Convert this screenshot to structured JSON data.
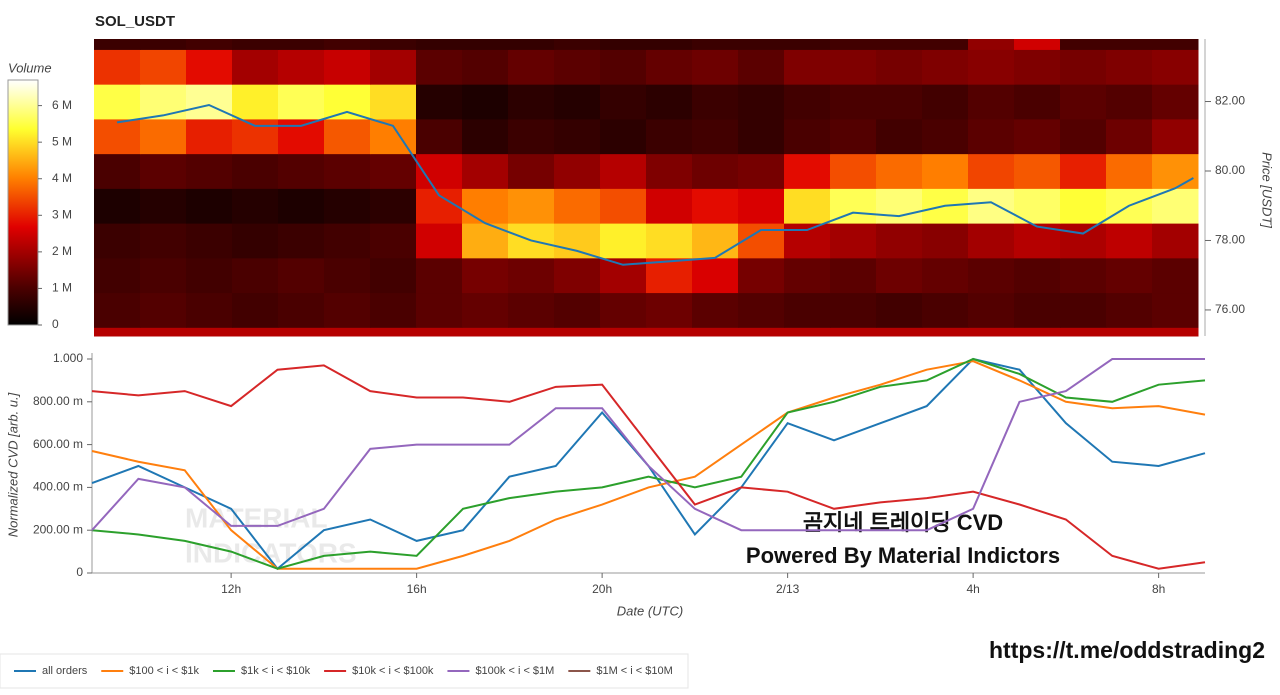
{
  "chart_data": [
    {
      "type": "heatmap",
      "title": "SOL_USDT",
      "xlim": [
        9,
        33
      ],
      "x_edges": [
        9,
        10,
        11,
        12,
        13,
        14,
        15,
        16,
        17,
        18,
        19,
        20,
        21,
        22,
        23,
        24,
        25,
        26,
        27,
        28,
        29,
        30,
        31,
        32,
        33
      ],
      "y_edges": [
        75.25,
        75.5,
        76.5,
        77.5,
        78.5,
        79.5,
        80.5,
        81.5,
        82.5,
        83.5,
        83.8
      ],
      "z": [
        [
          2.2,
          2.2,
          2.2,
          2.2,
          2.2,
          2.2,
          2.2,
          2.2,
          2.2,
          2.2,
          2.2,
          2.2,
          2.2,
          2.2,
          2.2,
          2.2,
          2.2,
          2.2,
          2.2,
          2.2,
          2.2,
          2.2,
          2.2,
          2.2
        ],
        [
          1.0,
          1.1,
          1.0,
          0.9,
          1.0,
          1.1,
          1.0,
          1.2,
          1.3,
          1.2,
          1.1,
          1.3,
          1.4,
          1.2,
          1.1,
          1.0,
          1.0,
          0.9,
          1.0,
          1.1,
          1.0,
          1.0,
          1.1,
          1.2
        ],
        [
          0.9,
          1.0,
          0.9,
          1.0,
          1.1,
          1.0,
          0.9,
          1.2,
          1.5,
          1.4,
          1.6,
          2.0,
          3.0,
          2.6,
          1.5,
          1.3,
          1.2,
          1.4,
          1.3,
          1.2,
          1.1,
          1.2,
          1.3,
          1.2
        ],
        [
          0.8,
          0.9,
          0.8,
          0.7,
          0.8,
          0.9,
          1.0,
          2.5,
          4.5,
          5.0,
          4.8,
          5.2,
          5.0,
          4.6,
          3.5,
          2.2,
          2.0,
          1.8,
          1.7,
          2.0,
          2.2,
          2.1,
          2.3,
          2.0
        ],
        [
          0.4,
          0.5,
          0.4,
          0.5,
          0.4,
          0.5,
          0.6,
          3.0,
          4.0,
          4.2,
          3.8,
          3.5,
          2.5,
          2.8,
          2.6,
          5.0,
          5.6,
          5.8,
          5.5,
          5.9,
          5.7,
          5.4,
          5.6,
          5.8
        ],
        [
          1.0,
          1.2,
          1.1,
          1.0,
          1.1,
          1.2,
          1.3,
          2.5,
          2.0,
          1.5,
          1.8,
          2.2,
          1.6,
          1.4,
          1.5,
          2.8,
          3.5,
          3.8,
          4.0,
          3.4,
          3.6,
          3.0,
          3.8,
          4.2
        ],
        [
          3.5,
          3.8,
          3.0,
          3.2,
          2.8,
          3.6,
          4.0,
          1.0,
          0.6,
          0.8,
          0.7,
          0.6,
          0.8,
          0.9,
          0.7,
          1.0,
          1.1,
          0.9,
          1.0,
          1.2,
          1.3,
          1.1,
          1.4,
          1.8
        ],
        [
          5.5,
          5.8,
          6.0,
          5.2,
          5.6,
          5.4,
          5.0,
          0.5,
          0.4,
          0.6,
          0.5,
          0.7,
          0.6,
          0.8,
          0.7,
          0.9,
          1.0,
          1.0,
          0.9,
          1.1,
          1.0,
          1.2,
          1.1,
          1.3
        ],
        [
          3.2,
          3.4,
          2.8,
          2.0,
          2.2,
          2.4,
          2.0,
          1.2,
          1.1,
          1.3,
          1.2,
          1.1,
          1.3,
          1.4,
          1.2,
          1.6,
          1.6,
          1.5,
          1.6,
          1.7,
          1.6,
          1.5,
          1.6,
          1.7
        ],
        [
          0.8,
          0.8,
          0.9,
          0.8,
          0.8,
          0.9,
          0.8,
          0.7,
          0.7,
          0.7,
          0.8,
          0.7,
          0.7,
          0.8,
          0.8,
          0.8,
          0.9,
          0.9,
          0.9,
          1.8,
          2.5,
          0.9,
          0.9,
          0.9
        ]
      ],
      "colormap": "hot",
      "colorbar_title": "Volume",
      "zlim": [
        0,
        6.7
      ],
      "zticks": [
        0,
        {
          "value": 1,
          "label": "1 M"
        },
        {
          "value": 2,
          "label": "2 M"
        },
        {
          "value": 3,
          "label": "3 M"
        },
        {
          "value": 4,
          "label": "4 M"
        },
        {
          "value": 5,
          "label": "5 M"
        },
        {
          "value": 6,
          "label": "6 M"
        }
      ],
      "line": {
        "color": "#1f77b4",
        "axis": "y2",
        "x": [
          9.5,
          10.5,
          11.5,
          12.5,
          13.5,
          14.5,
          15.5,
          16.5,
          17.5,
          18.5,
          19.5,
          20.5,
          21.5,
          22.5,
          23.5,
          24.5,
          25.5,
          26.5,
          27.5,
          28.5,
          29.5,
          30.5,
          31.5,
          32.5,
          32.9
        ],
        "values": [
          81.4,
          81.6,
          81.9,
          81.3,
          81.3,
          81.7,
          81.3,
          79.3,
          78.5,
          78.0,
          77.7,
          77.3,
          77.4,
          77.5,
          78.3,
          78.3,
          78.8,
          78.7,
          79.0,
          79.1,
          78.4,
          78.2,
          79.0,
          79.5,
          79.8
        ]
      },
      "y2label": "Price [USDT]",
      "y2lim": [
        75.25,
        83.8
      ],
      "y2ticks": [
        {
          "value": 76,
          "label": "76.00"
        },
        {
          "value": 78,
          "label": "78.00"
        },
        {
          "value": 80,
          "label": "80.00"
        },
        {
          "value": 82,
          "label": "82.00"
        }
      ]
    },
    {
      "type": "line",
      "xlabel": "Date (UTC)",
      "ylabel": "Normalized CVD [arb. u.]",
      "xlim": [
        9,
        33
      ],
      "xticks": [
        {
          "value": 12,
          "label": "12h"
        },
        {
          "value": 16,
          "label": "16h"
        },
        {
          "value": 20,
          "label": "20h"
        },
        {
          "value": 24,
          "label": "2/13"
        },
        {
          "value": 28,
          "label": "4h"
        },
        {
          "value": 32,
          "label": "8h"
        }
      ],
      "ylim": [
        0,
        1
      ],
      "yticks": [
        0,
        {
          "value": 0.2,
          "label": "200.00 m"
        },
        {
          "value": 0.4,
          "label": "400.00 m"
        },
        {
          "value": 0.6,
          "label": "600.00 m"
        },
        {
          "value": 0.8,
          "label": "800.00 m"
        },
        {
          "value": 1,
          "label": "1.000"
        }
      ],
      "x": [
        9,
        10,
        11,
        12,
        13,
        14,
        15,
        16,
        17,
        18,
        19,
        20,
        21,
        22,
        23,
        24,
        25,
        26,
        27,
        28,
        29,
        30,
        31,
        32,
        33
      ],
      "series": [
        {
          "name": "all orders",
          "color": "#1f77b4",
          "values": [
            0.42,
            0.5,
            0.4,
            0.3,
            0.02,
            0.2,
            0.25,
            0.15,
            0.2,
            0.45,
            0.5,
            0.75,
            0.5,
            0.18,
            0.4,
            0.7,
            0.62,
            0.7,
            0.78,
            1.0,
            0.95,
            0.7,
            0.52,
            0.5,
            0.56
          ]
        },
        {
          "name": "$100 < i < $1k",
          "color": "#ff7f0e",
          "values": [
            0.57,
            0.52,
            0.48,
            0.2,
            0.02,
            0.02,
            0.02,
            0.02,
            0.08,
            0.15,
            0.25,
            0.32,
            0.4,
            0.45,
            0.6,
            0.75,
            0.82,
            0.88,
            0.95,
            0.99,
            0.9,
            0.8,
            0.77,
            0.78,
            0.74
          ]
        },
        {
          "name": "$1k < i < $10k",
          "color": "#2ca02c",
          "values": [
            0.2,
            0.18,
            0.15,
            0.1,
            0.02,
            0.08,
            0.1,
            0.08,
            0.3,
            0.35,
            0.38,
            0.4,
            0.45,
            0.4,
            0.45,
            0.75,
            0.8,
            0.87,
            0.9,
            1.0,
            0.93,
            0.82,
            0.8,
            0.88,
            0.9
          ]
        },
        {
          "name": "$10k < i < $100k",
          "color": "#d62728",
          "values": [
            0.85,
            0.83,
            0.85,
            0.78,
            0.95,
            0.97,
            0.85,
            0.82,
            0.82,
            0.8,
            0.87,
            0.88,
            0.6,
            0.32,
            0.4,
            0.38,
            0.3,
            0.33,
            0.35,
            0.38,
            0.32,
            0.25,
            0.08,
            0.02,
            0.05
          ]
        },
        {
          "name": "$100k < i < $1M",
          "color": "#9467bd",
          "values": [
            0.2,
            0.44,
            0.4,
            0.22,
            0.22,
            0.3,
            0.58,
            0.6,
            0.6,
            0.6,
            0.77,
            0.77,
            0.5,
            0.3,
            0.2,
            0.2,
            0.2,
            0.2,
            0.2,
            0.3,
            0.8,
            0.85,
            1.0,
            1.0,
            1.0
          ]
        },
        {
          "name": "$1M < i < $10M",
          "color": "#8c564b",
          "values": [
            null,
            null,
            null,
            null,
            null,
            null,
            null,
            null,
            null,
            null,
            null,
            null,
            null,
            null,
            null,
            null,
            null,
            null,
            null,
            null,
            null,
            null,
            null,
            null,
            null
          ]
        }
      ],
      "legend": "bottom",
      "watermark": [
        "MATERIAL",
        "INDICATORS"
      ],
      "annotations": [
        "곰지네 트레이딩 CVD",
        "Powered By Material Indictors"
      ]
    }
  ],
  "link": "https://t.me/oddstrading2"
}
